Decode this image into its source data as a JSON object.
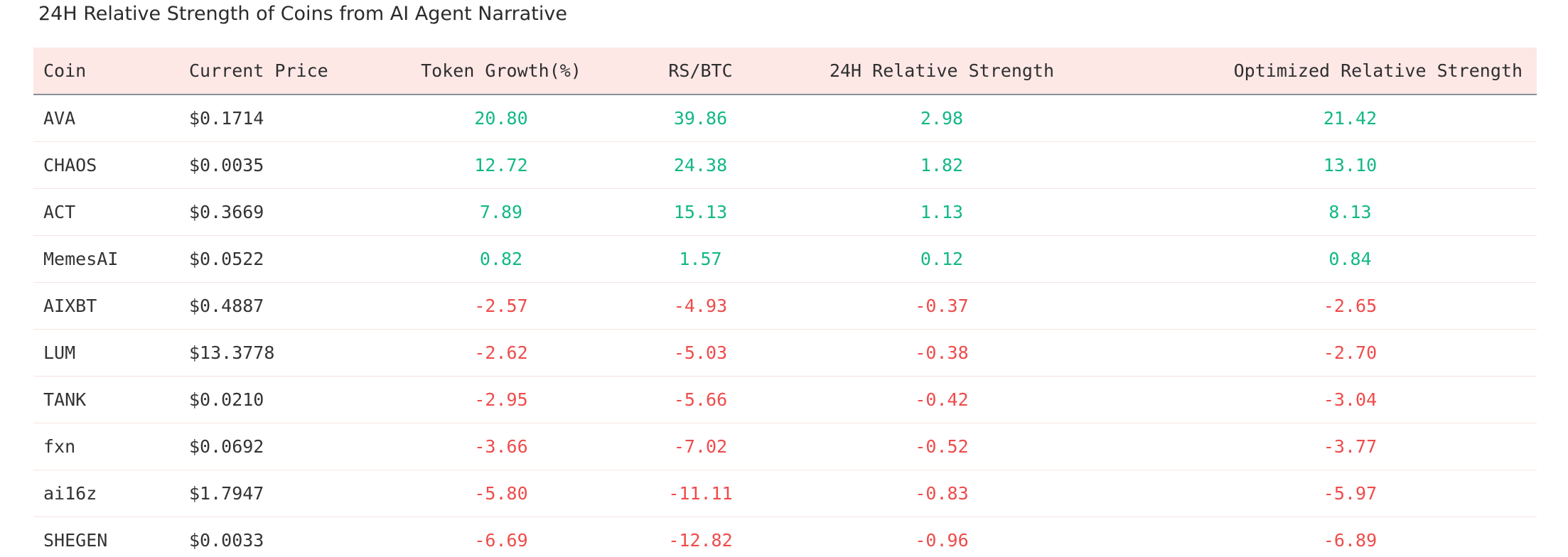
{
  "title": "24H Relative Strength of Coins from AI Agent Narrative",
  "table": {
    "columns": [
      "Coin",
      "Current Price",
      "Token Growth(%)",
      "RS/BTC",
      "24H Relative Strength",
      "Optimized Relative Strength"
    ],
    "rows": [
      {
        "coin": "AVA",
        "price": "$0.1714",
        "growth": "20.80",
        "rs_btc": "39.86",
        "rs_24h": "2.98",
        "optimized": "21.42",
        "trend": "positive"
      },
      {
        "coin": "CHAOS",
        "price": "$0.0035",
        "growth": "12.72",
        "rs_btc": "24.38",
        "rs_24h": "1.82",
        "optimized": "13.10",
        "trend": "positive"
      },
      {
        "coin": "ACT",
        "price": "$0.3669",
        "growth": "7.89",
        "rs_btc": "15.13",
        "rs_24h": "1.13",
        "optimized": "8.13",
        "trend": "positive"
      },
      {
        "coin": "MemesAI",
        "price": "$0.0522",
        "growth": "0.82",
        "rs_btc": "1.57",
        "rs_24h": "0.12",
        "optimized": "0.84",
        "trend": "positive"
      },
      {
        "coin": "AIXBT",
        "price": "$0.4887",
        "growth": "-2.57",
        "rs_btc": "-4.93",
        "rs_24h": "-0.37",
        "optimized": "-2.65",
        "trend": "negative"
      },
      {
        "coin": "LUM",
        "price": "$13.3778",
        "growth": "-2.62",
        "rs_btc": "-5.03",
        "rs_24h": "-0.38",
        "optimized": "-2.70",
        "trend": "negative"
      },
      {
        "coin": "TANK",
        "price": "$0.0210",
        "growth": "-2.95",
        "rs_btc": "-5.66",
        "rs_24h": "-0.42",
        "optimized": "-3.04",
        "trend": "negative"
      },
      {
        "coin": "fxn",
        "price": "$0.0692",
        "growth": "-3.66",
        "rs_btc": "-7.02",
        "rs_24h": "-0.52",
        "optimized": "-3.77",
        "trend": "negative"
      },
      {
        "coin": "ai16z",
        "price": "$1.7947",
        "growth": "-5.80",
        "rs_btc": "-11.11",
        "rs_24h": "-0.83",
        "optimized": "-5.97",
        "trend": "negative"
      },
      {
        "coin": "SHEGEN",
        "price": "$0.0033",
        "growth": "-6.69",
        "rs_btc": "-12.82",
        "rs_24h": "-0.96",
        "optimized": "-6.89",
        "trend": "negative"
      }
    ]
  },
  "colors": {
    "positive": "#12b886",
    "negative": "#ef4b4b",
    "header_bg": "#fde8e6"
  }
}
